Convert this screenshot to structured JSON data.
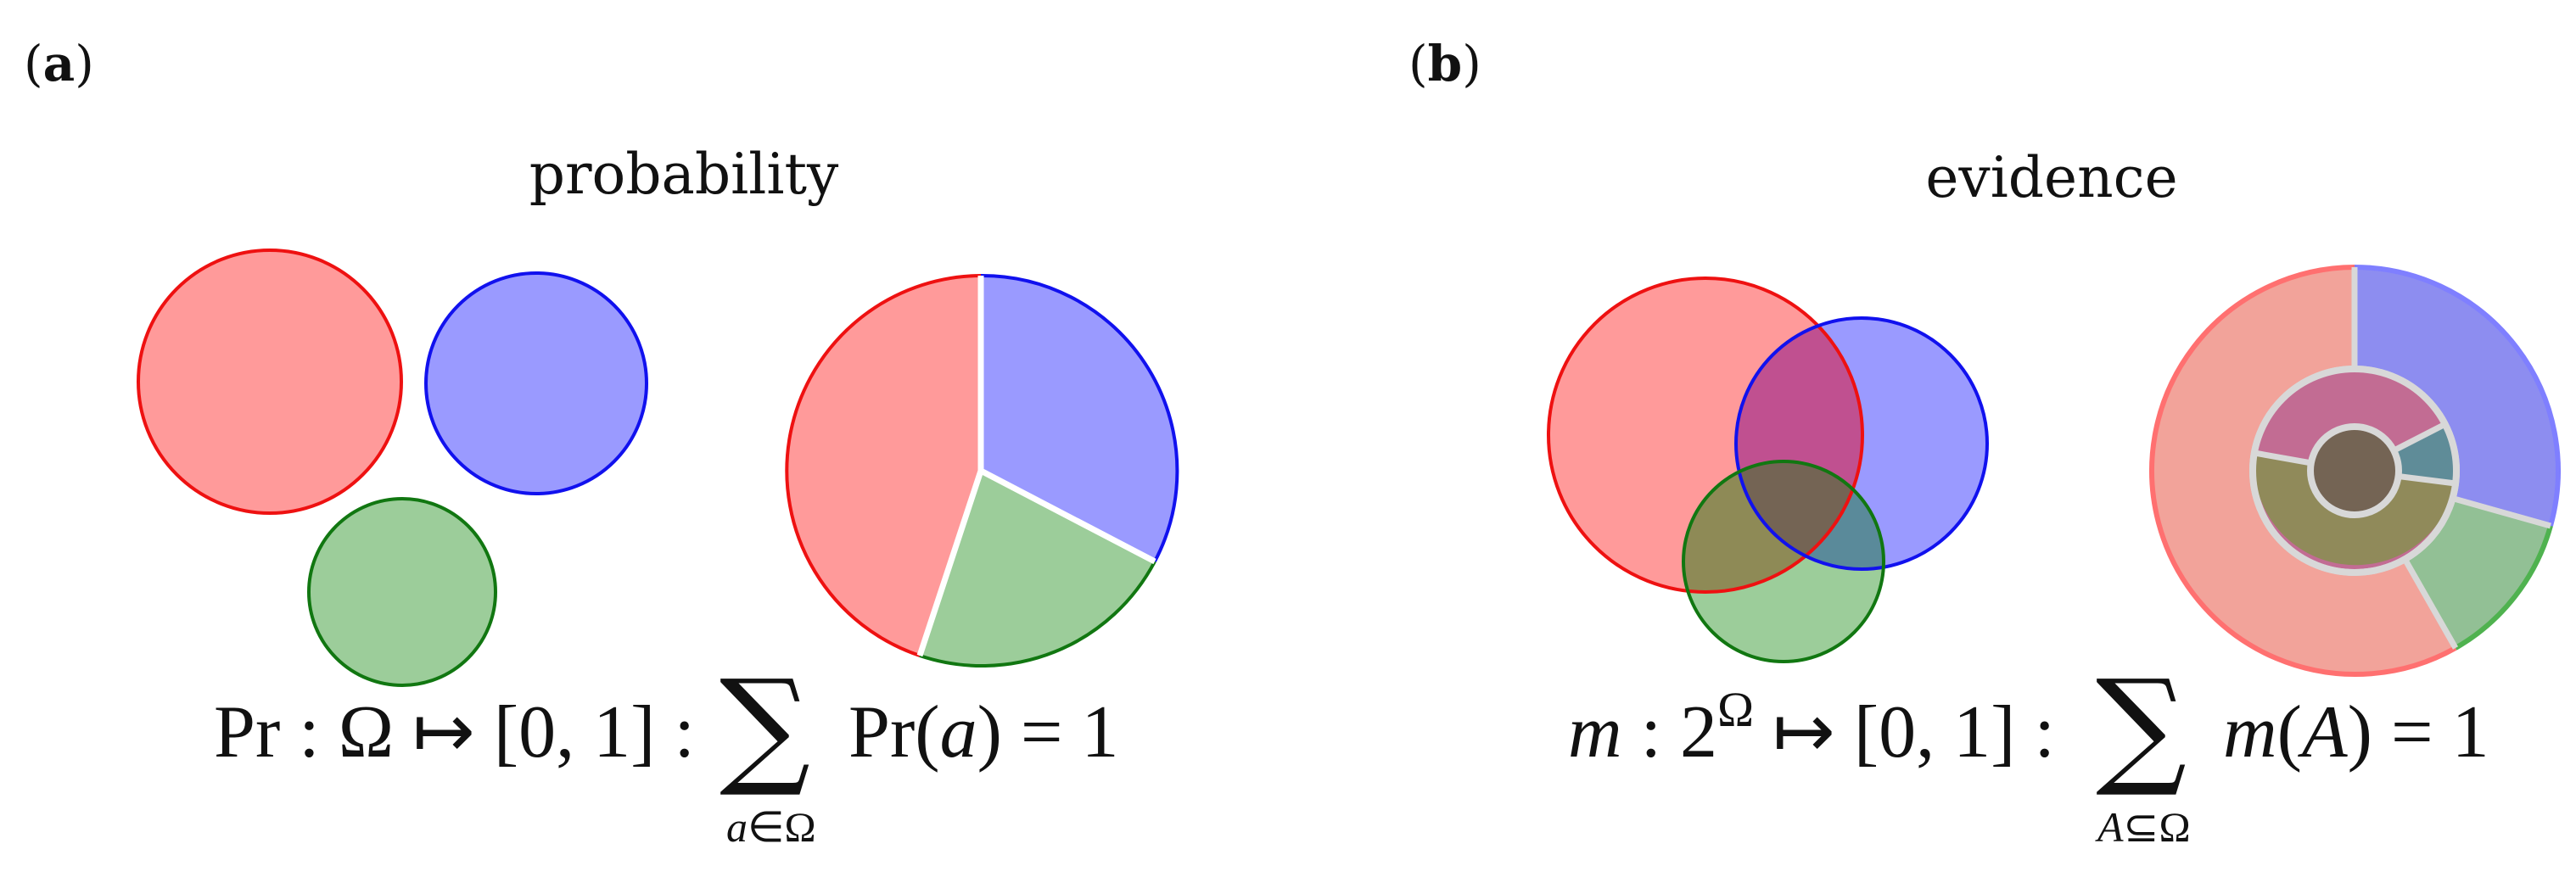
{
  "panel_a": {
    "label_open": "(",
    "label_letter": "a",
    "label_close": ")",
    "title": "probability",
    "formula": {
      "lhs": "Pr : Ω ↦ [0, 1] :",
      "sum_symbol": "∑",
      "sum_body": "Pr(",
      "sum_var": "a",
      "sum_close": ") = 1",
      "sub_var": "a",
      "sub_rest": "∈Ω"
    },
    "colors": {
      "red_fill": "#ff9a9a",
      "red_stroke": "#ee1111",
      "blue_fill": "#9a9aff",
      "blue_stroke": "#1111ee",
      "green_fill": "#9ccd9a",
      "green_stroke": "#117711"
    }
  },
  "panel_b": {
    "label_open": "(",
    "label_letter": "b",
    "label_close": ")",
    "title": "evidence",
    "formula": {
      "lhs_var": "m",
      "lhs_rest": " : 2",
      "lhs_sup": "Ω",
      "lhs_tail": " ↦ [0, 1] :",
      "sum_symbol": "∑",
      "sum_var": "m",
      "sum_open": "(",
      "sum_arg": "A",
      "sum_close": ") = 1",
      "sub_var": "A",
      "sub_rest": "⊆Ω"
    },
    "colors": {
      "red_fill": "#ff9a9a",
      "red_stroke": "#ee1111",
      "blue_fill": "#9a9aff",
      "blue_stroke": "#1111ee",
      "green_fill": "#9ccd9a",
      "green_stroke": "#117711",
      "red_blue": "#c05090",
      "red_green": "#8e8a56",
      "blue_green": "#5a8a9a",
      "all_three": "#746454",
      "donut_outer_red": "#f2a39a",
      "donut_outer_blue": "#8d8df0",
      "donut_outer_green": "#92c095",
      "donut_sep": "#d8d8d8"
    }
  }
}
